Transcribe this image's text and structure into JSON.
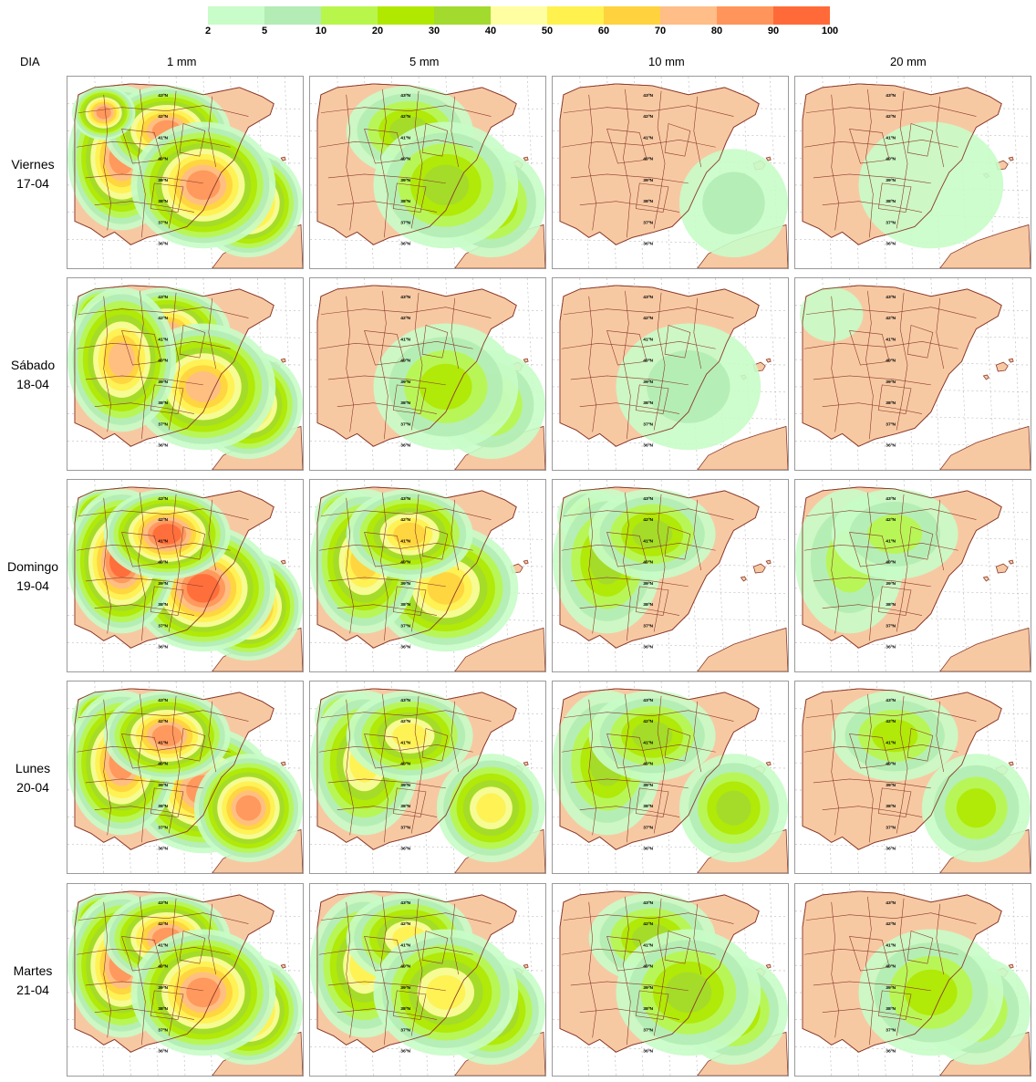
{
  "legend": {
    "labels": [
      "2",
      "5",
      "10",
      "20",
      "30",
      "40",
      "50",
      "60",
      "70",
      "80",
      "90",
      "100"
    ],
    "colors": [
      "#c8fcc8",
      "#b3ecb4",
      "#b8f64c",
      "#b0e800",
      "#a3da2e",
      "#fffea0",
      "#fff14e",
      "#ffd23e",
      "#ffbd88",
      "#ff955a",
      "#ff6a38"
    ]
  },
  "header": {
    "row_label": "DIA",
    "columns": [
      "1 mm",
      "5 mm",
      "10 mm",
      "20 mm"
    ]
  },
  "rows": [
    {
      "weekday": "Viernes",
      "date": "17-04",
      "levels": [
        9,
        4,
        1,
        0
      ]
    },
    {
      "weekday": "Sábado",
      "date": "18-04",
      "levels": [
        8,
        3,
        1,
        0
      ]
    },
    {
      "weekday": "Domingo",
      "date": "19-04",
      "levels": [
        10,
        7,
        4,
        2
      ]
    },
    {
      "weekday": "Lunes",
      "date": "20-04",
      "levels": [
        9,
        6,
        4,
        3
      ]
    },
    {
      "weekday": "Martes",
      "date": "21-04",
      "levels": [
        9,
        6,
        4,
        3
      ]
    }
  ],
  "map": {
    "land_color": "#f7c9a3",
    "border_color": "#8b3a2a",
    "grid_color": "#c0c0c0",
    "latitude_labels": [
      "43ºN",
      "42ºN",
      "41ºN",
      "40ºN",
      "39ºN",
      "38ºN",
      "37ºN",
      "36ºN"
    ]
  }
}
